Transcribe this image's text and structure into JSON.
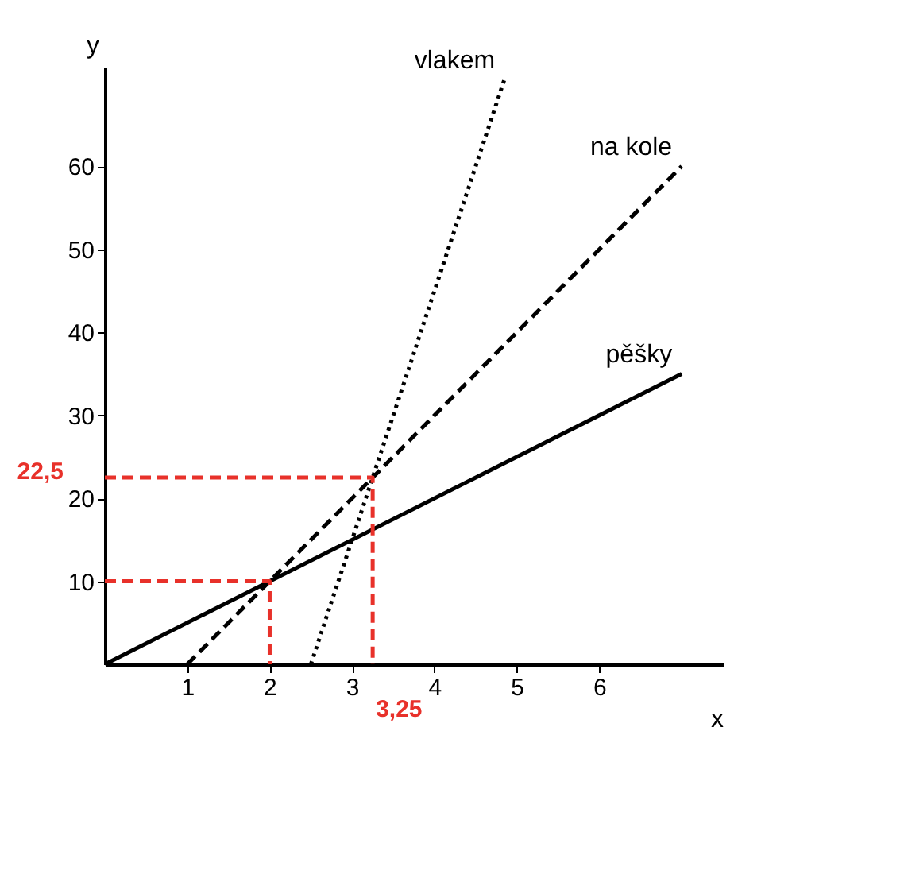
{
  "chart_data": {
    "type": "line",
    "xlabel": "x",
    "ylabel": "y",
    "xlim": [
      0,
      7.5
    ],
    "ylim": [
      0,
      72
    ],
    "xticks": [
      1,
      2,
      3,
      4,
      5,
      6
    ],
    "yticks": [
      10,
      20,
      30,
      40,
      50,
      60
    ],
    "grid": false,
    "legend": false,
    "series": [
      {
        "name": "pěšky",
        "color": "#000000",
        "line_style": "solid",
        "x": [
          0,
          7
        ],
        "values": [
          0,
          35
        ]
      },
      {
        "name": "na kole",
        "color": "#000000",
        "line_style": "dashed",
        "x": [
          1,
          7
        ],
        "values": [
          0,
          60
        ]
      },
      {
        "name": "vlakem",
        "color": "#000000",
        "line_style": "dotted",
        "x": [
          2.5,
          4.85
        ],
        "values": [
          0,
          70.5
        ]
      },
      {
        "color": "#e8312a",
        "line_style": "dashed",
        "x": [
          0,
          3.25,
          3.25
        ],
        "values": [
          22.5,
          22.5,
          0
        ]
      },
      {
        "color": "#e8312a",
        "line_style": "dashed",
        "x": [
          0,
          2,
          2
        ],
        "values": [
          10,
          10,
          0
        ]
      }
    ],
    "annotations": [
      {
        "text": "22,5",
        "x": 0,
        "y": 22.5
      },
      {
        "text": "3,25",
        "x": 3.25,
        "y": 0
      }
    ]
  }
}
